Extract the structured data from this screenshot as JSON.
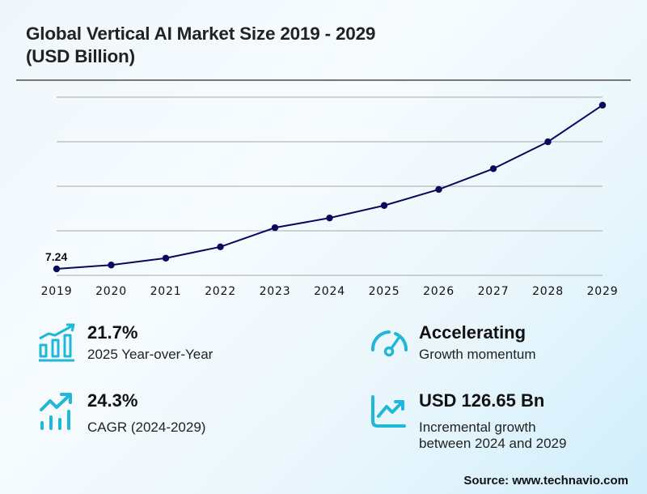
{
  "header": {
    "title_line1": "Global Vertical AI Market Size 2019 - 2029",
    "title_line2": "(USD Billion)"
  },
  "chart_data": {
    "type": "line",
    "title": "Global Vertical AI Market Size 2019 - 2029 (USD Billion)",
    "xlabel": "",
    "ylabel": "",
    "categories": [
      "2019",
      "2020",
      "2021",
      "2022",
      "2023",
      "2024",
      "2025",
      "2026",
      "2027",
      "2028",
      "2029"
    ],
    "series": [
      {
        "name": "Market Size (USD Billion)",
        "values": [
          7.24,
          11.6,
          19.3,
          32.0,
          53.5,
          64.4,
          78.4,
          96.4,
          119.7,
          149.9,
          191.05
        ],
        "color": "#0a0a5c"
      }
    ],
    "data_labels": [
      {
        "index": 0,
        "text": "7.24"
      }
    ],
    "ylim": [
      0,
      200
    ],
    "gridlines": [
      0,
      50,
      100,
      150,
      200
    ],
    "grid": true,
    "y_tick_labels_visible": false,
    "legend": "none"
  },
  "stats": [
    {
      "icon": "bar-chart-growth-icon",
      "value": "21.7%",
      "description": "2025 Year-over-Year"
    },
    {
      "icon": "speedometer-icon",
      "value": "Accelerating",
      "description": "Growth momentum"
    },
    {
      "icon": "trend-up-bars-icon",
      "value": "24.3%",
      "description": "CAGR (2024-2029)"
    },
    {
      "icon": "line-chart-up-icon",
      "value": "USD 126.65 Bn",
      "description_line1": "Incremental growth",
      "description_line2": "between 2024 and 2029"
    }
  ],
  "colors": {
    "accent_icon": "#1fb8d8",
    "line": "#0a0a5c",
    "grid": "#a8a8a8"
  },
  "footer": {
    "source": "Source: www.technavio.com"
  }
}
